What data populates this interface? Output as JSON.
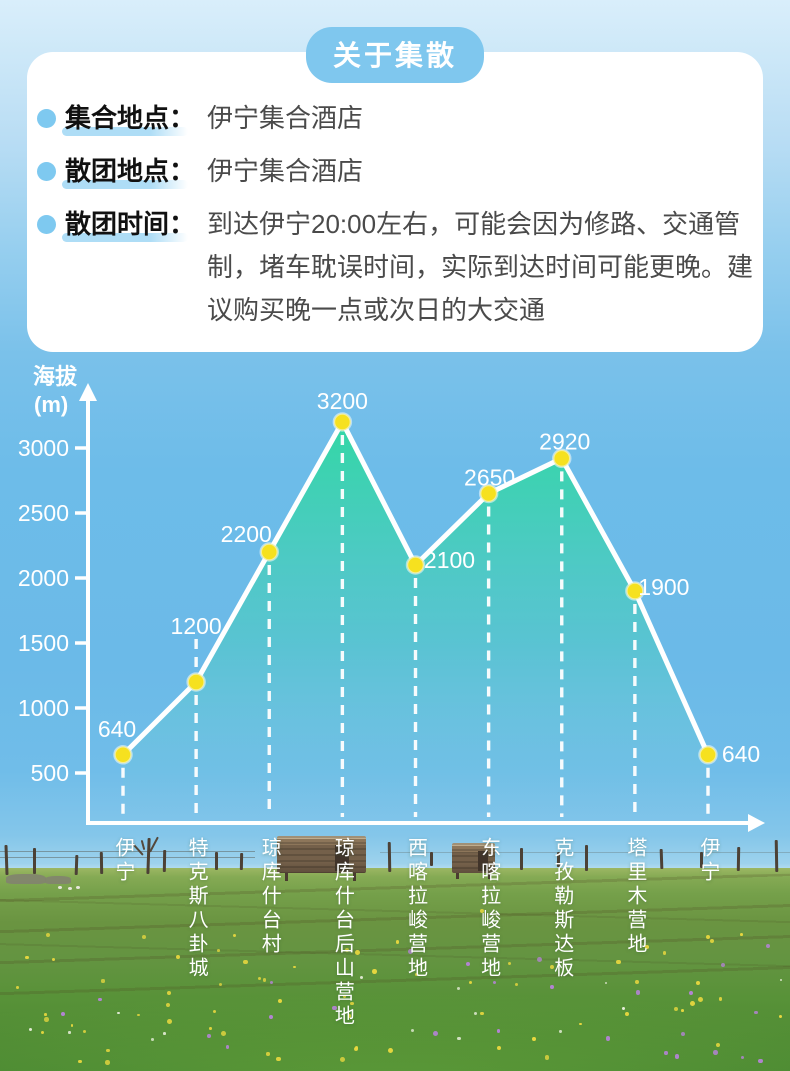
{
  "header": {
    "badge": "关于集散"
  },
  "info": {
    "items": [
      {
        "label": "集合地点：",
        "value": "伊宁集合酒店"
      },
      {
        "label": "散团地点：",
        "value": "伊宁集合酒店"
      },
      {
        "label": "散团时间：",
        "value": "到达伊宁20:00左右，可能会因为修路、交通管制，堵车耽误时间，实际到达时间可能更晚。建议购买晚一点或次日的大交通"
      }
    ]
  },
  "chart_data": {
    "type": "area",
    "title": "",
    "ylabel_line1": "海拔",
    "ylabel_line2": "(m)",
    "categories": [
      "伊宁",
      "特克斯八卦城",
      "琼库什台村",
      "琼库什台后山营地",
      "西喀拉峻营地",
      "东喀拉峻营地",
      "克孜勒斯达板",
      "塔里木营地",
      "伊宁"
    ],
    "values": [
      640,
      1200,
      2200,
      3200,
      2100,
      2650,
      2920,
      1900,
      640
    ],
    "yticks": [
      3000,
      2500,
      2000,
      1500,
      1000,
      500
    ],
    "ylim": [
      0,
      3400
    ],
    "grid": false,
    "legend": "none",
    "colors": {
      "line": "#ffffff",
      "dot": "#f6e11f",
      "area_top": "#2ed9a0",
      "area_bottom": "#7fd2d8",
      "sky": "#6cbbe9",
      "badge_bg": "#7fc7ee",
      "bullet": "#7ec9f0",
      "label_highlight": "#aeddf6",
      "axis": "#ffffff"
    }
  }
}
